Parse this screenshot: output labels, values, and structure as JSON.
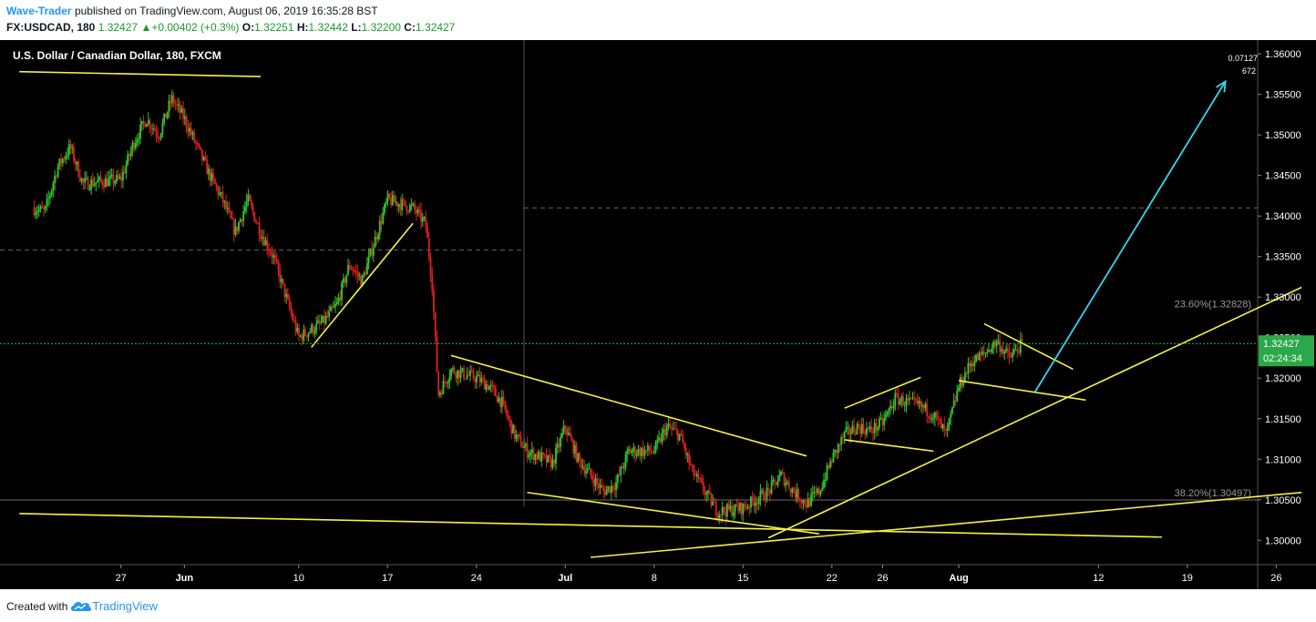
{
  "header": {
    "author": "Wave-Trader",
    "published_text": "published on TradingView.com, August 06, 2019 16:35:28 BST",
    "symbol": "FX:USDCAD, 180",
    "last": "1.32427",
    "change": "+0.00402 (+0.3%)",
    "o_label": "O:",
    "o_value": "1.32251",
    "h_label": "H:",
    "h_value": "1.32442",
    "l_label": "L:",
    "l_value": "1.32200",
    "c_label": "C:",
    "c_value": "1.32427"
  },
  "footer": {
    "created_with": "Created with",
    "brand": "TradingView"
  },
  "colors": {
    "background": "#000000",
    "up_candle": "#2ecc2e",
    "down_candle": "#e02020",
    "trendline": "#f5f240",
    "arrow": "#35d6f0",
    "price_line": "#2bbf4a",
    "price_tag": "#2ba84a",
    "axis_text": "#ffffff",
    "fib_text": "#9a9a9a"
  },
  "chart_data": {
    "type": "candlestick",
    "title": "U.S. Dollar / Canadian Dollar, 180, FXCM",
    "x_ticks": [
      "27",
      "Jun",
      "10",
      "17",
      "24",
      "Jul",
      "8",
      "15",
      "22",
      "26",
      "Aug",
      "12",
      "19",
      "26"
    ],
    "y_ticks": [
      "1.36000",
      "1.35500",
      "1.35000",
      "1.34500",
      "1.34000",
      "1.33500",
      "1.33000",
      "1.32500",
      "1.32000",
      "1.31500",
      "1.31000",
      "1.30500",
      "1.30000"
    ],
    "ylim": [
      1.297,
      1.3617
    ],
    "top_right_values": [
      "0.07127",
      "672"
    ],
    "last_price": "1.32427",
    "countdown": "02:24:34",
    "fib_levels": [
      {
        "label": "23.60%(1.32828)",
        "value": 1.32828
      },
      {
        "label": "38.20%(1.30497)",
        "value": 1.30497
      }
    ],
    "price_path": [
      [
        "05-20",
        1.341
      ],
      [
        "05-21",
        1.3405
      ],
      [
        "05-22",
        1.346
      ],
      [
        "05-23",
        1.3485
      ],
      [
        "05-24",
        1.344
      ],
      [
        "05-27",
        1.3445
      ],
      [
        "05-28",
        1.349
      ],
      [
        "05-29",
        1.352
      ],
      [
        "05-30",
        1.35
      ],
      [
        "05-31",
        1.3545
      ],
      [
        "06-01",
        1.352
      ],
      [
        "06-03",
        1.345
      ],
      [
        "06-04",
        1.342
      ],
      [
        "06-05",
        1.338
      ],
      [
        "06-06",
        1.342
      ],
      [
        "06-07",
        1.338
      ],
      [
        "06-08",
        1.335
      ],
      [
        "06-10",
        1.325
      ],
      [
        "06-11",
        1.326
      ],
      [
        "06-12",
        1.327
      ],
      [
        "06-13",
        1.329
      ],
      [
        "06-14",
        1.334
      ],
      [
        "06-15",
        1.332
      ],
      [
        "06-16",
        1.337
      ],
      [
        "06-17",
        1.342
      ],
      [
        "06-18",
        1.3415
      ],
      [
        "06-19",
        1.341
      ],
      [
        "06-20",
        1.339
      ],
      [
        "06-20T12",
        1.332
      ],
      [
        "06-21",
        1.318
      ],
      [
        "06-22",
        1.321
      ],
      [
        "06-24",
        1.32
      ],
      [
        "06-25",
        1.319
      ],
      [
        "06-26",
        1.317
      ],
      [
        "06-27",
        1.313
      ],
      [
        "06-28",
        1.311
      ],
      [
        "06-30",
        1.3095
      ],
      [
        "07-01",
        1.314
      ],
      [
        "07-02",
        1.31
      ],
      [
        "07-03",
        1.308
      ],
      [
        "07-04",
        1.306
      ],
      [
        "07-05",
        1.307
      ],
      [
        "07-06",
        1.311
      ],
      [
        "07-08",
        1.311
      ],
      [
        "07-09",
        1.314
      ],
      [
        "07-10",
        1.313
      ],
      [
        "07-11",
        1.3085
      ],
      [
        "07-12",
        1.306
      ],
      [
        "07-13",
        1.3035
      ],
      [
        "07-15",
        1.304
      ],
      [
        "07-16",
        1.305
      ],
      [
        "07-17",
        1.306
      ],
      [
        "07-18",
        1.308
      ],
      [
        "07-19",
        1.306
      ],
      [
        "07-20",
        1.3045
      ],
      [
        "07-21",
        1.306
      ],
      [
        "07-22",
        1.31
      ],
      [
        "07-23",
        1.313
      ],
      [
        "07-24",
        1.314
      ],
      [
        "07-25",
        1.3135
      ],
      [
        "07-26",
        1.3145
      ],
      [
        "07-27",
        1.3175
      ],
      [
        "07-28",
        1.317
      ],
      [
        "07-29",
        1.3165
      ],
      [
        "07-30",
        1.3155
      ],
      [
        "07-31",
        1.313
      ],
      [
        "08-01",
        1.319
      ],
      [
        "08-02",
        1.322
      ],
      [
        "08-03",
        1.323
      ],
      [
        "08-04",
        1.3245
      ],
      [
        "08-05",
        1.3225
      ],
      [
        "08-06",
        1.32427
      ]
    ],
    "annotations": {
      "trendlines": [
        {
          "from": [
            "05-19",
            1.3578
          ],
          "to": [
            "06-07",
            1.3572
          ]
        },
        {
          "from": [
            "06-11",
            1.3238
          ],
          "to": [
            "06-19",
            1.3391
          ]
        },
        {
          "from": [
            "06-22",
            1.3228
          ],
          "to": [
            "07-20",
            1.3104
          ]
        },
        {
          "from": [
            "06-28",
            1.3059
          ],
          "to": [
            "07-21",
            1.3008
          ]
        },
        {
          "from": [
            "05-19",
            1.3033
          ],
          "to": [
            "08-17",
            1.3004
          ]
        },
        {
          "from": [
            "07-03",
            1.2979
          ],
          "to": [
            "08-28",
            1.3059
          ]
        },
        {
          "from": [
            "07-17",
            1.3003
          ],
          "to": [
            "08-28",
            1.3312
          ]
        },
        {
          "from": [
            "07-23",
            1.3124
          ],
          "to": [
            "07-30",
            1.311
          ]
        },
        {
          "from": [
            "07-23",
            1.3163
          ],
          "to": [
            "07-29",
            1.3201
          ]
        },
        {
          "from": [
            "08-01",
            1.3197
          ],
          "to": [
            "08-11",
            1.3173
          ]
        },
        {
          "from": [
            "08-03",
            1.3267
          ],
          "to": [
            "08-10",
            1.3211
          ]
        }
      ],
      "arrow": {
        "from": [
          "08-07",
          1.3183
        ],
        "to": [
          "08-22",
          1.3566
        ]
      }
    }
  }
}
